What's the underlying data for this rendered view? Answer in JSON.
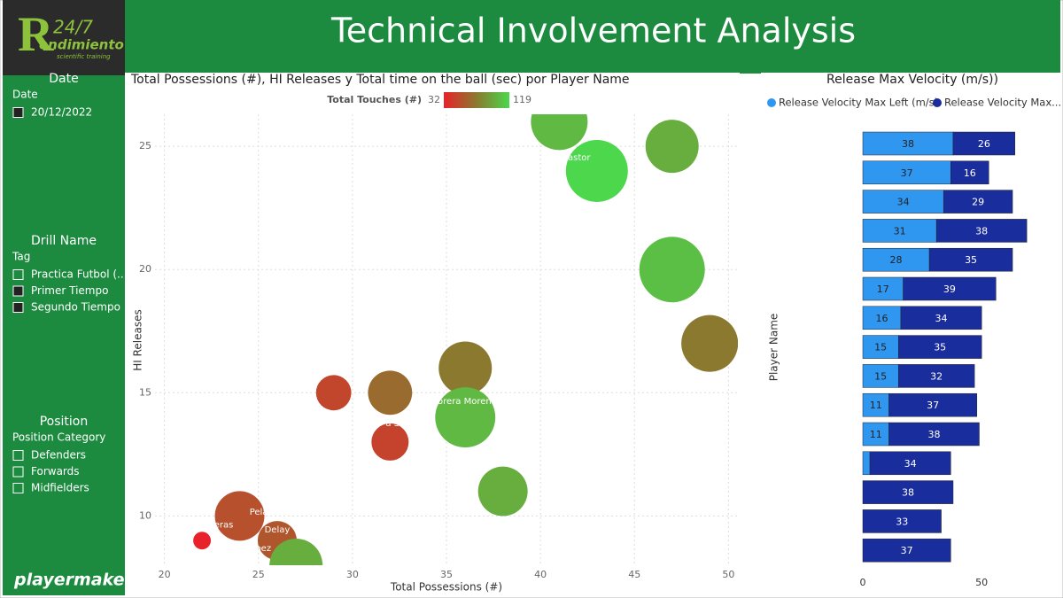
{
  "header": {
    "title": "Technical Involvement Analysis"
  },
  "logo": {
    "mark": "R",
    "top": "24/7",
    "word": "endimiento",
    "tagline": "scientific training"
  },
  "footer": {
    "brand": "playermaker"
  },
  "filters": [
    {
      "title": "Date",
      "field": "Date",
      "items": [
        {
          "label": "20/12/2022",
          "checked": true
        }
      ]
    },
    {
      "title": "Drill Name",
      "field": "Tag",
      "items": [
        {
          "label": "Practica Futbol (...",
          "checked": false
        },
        {
          "label": "Primer Tiempo",
          "checked": true
        },
        {
          "label": "Segundo Tiempo",
          "checked": true
        }
      ]
    },
    {
      "title": "Position",
      "field": "Position Category",
      "items": [
        {
          "label": "Defenders",
          "checked": false
        },
        {
          "label": "Forwards",
          "checked": false
        },
        {
          "label": "Midfielders",
          "checked": false
        }
      ]
    }
  ],
  "chart_data": [
    {
      "type": "bubble",
      "title": "Total Possessions (#), HI Releases y Total time on the ball (sec) por Player Name",
      "x_label": "Total Possessions (#)",
      "y_label": "HI Releases",
      "color_legend": {
        "title": "Total Touches (#)",
        "min": 32,
        "max": 119,
        "colors": [
          "#e8212a",
          "#8a7a2f",
          "#4cd74c"
        ]
      },
      "x": [
        41,
        47,
        43,
        47,
        49,
        36,
        29,
        32,
        36,
        32,
        38,
        24,
        26,
        22,
        27
      ],
      "y": [
        26,
        25,
        24,
        20,
        17,
        16,
        15,
        15,
        14,
        13,
        11,
        10,
        9,
        9,
        8
      ],
      "sizes": [
        114,
        100,
        136,
        152,
        114,
        100,
        44,
        69,
        128,
        49,
        87,
        87,
        54,
        11,
        100
      ],
      "touches": [
        105,
        100,
        119,
        108,
        75,
        75,
        50,
        68,
        105,
        48,
        100,
        55,
        58,
        32,
        100
      ],
      "point_labels": [
        null,
        null,
        "astor",
        null,
        null,
        null,
        null,
        null,
        "abrera Moren",
        "a Sa",
        null,
        "eras",
        "Delay",
        "Pela",
        "pez"
      ],
      "xlim": [
        19.5,
        50.5
      ],
      "xticks": [
        20,
        25,
        30,
        35,
        40,
        45,
        50
      ],
      "ylim": [
        8,
        26.3
      ],
      "yticks": [
        10,
        15,
        20,
        25
      ],
      "grid": true
    },
    {
      "type": "hbar-stacked",
      "title": "Release Max Velocity (m/s))",
      "y_label": "Player Name",
      "categories": [
        null,
        null,
        null,
        null,
        null,
        null,
        null,
        null,
        null,
        null,
        null,
        null,
        null,
        null,
        null
      ],
      "series": [
        {
          "name": "Release Velocity Max Left (m/s)",
          "color": "#3097f0",
          "values": [
            38,
            37,
            34,
            31,
            28,
            17,
            16,
            15,
            15,
            11,
            11,
            3,
            null,
            null,
            null
          ]
        },
        {
          "name": "Release Velocity Max...",
          "color": "#1a2d9c",
          "values": [
            26,
            16,
            29,
            38,
            35,
            39,
            34,
            35,
            32,
            37,
            38,
            34,
            38,
            33,
            37
          ]
        }
      ],
      "xlim": [
        0,
        82
      ],
      "xticks": [
        0,
        50
      ]
    }
  ]
}
